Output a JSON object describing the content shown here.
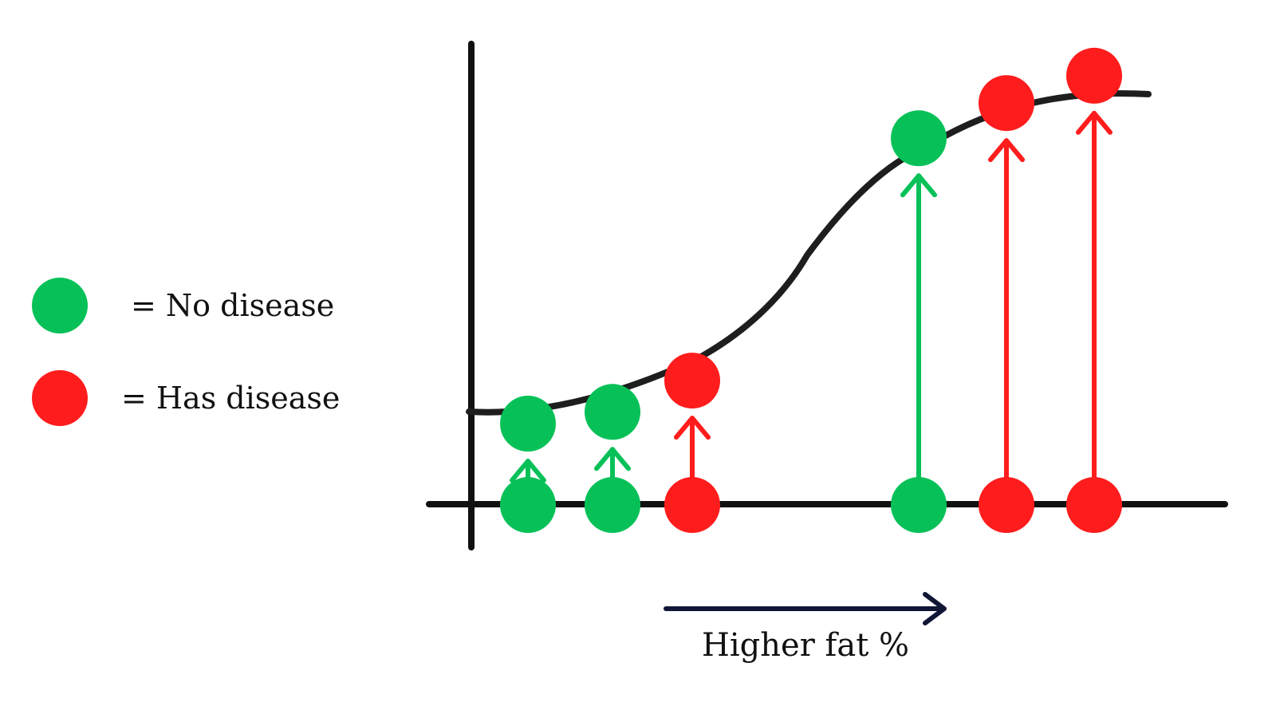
{
  "legend": {
    "no_disease": {
      "label": "= No disease",
      "color": "#07c158"
    },
    "has_disease": {
      "label": "= Has disease",
      "color": "#ff1c1c"
    }
  },
  "x_axis_caption": "Higher fat %",
  "colors": {
    "axis": "#111111",
    "curve": "#1e1e1e",
    "direction_arrow": "#101634"
  },
  "points": [
    {
      "status": "no_disease",
      "probability": 0.1
    },
    {
      "status": "no_disease",
      "probability": 0.13
    },
    {
      "status": "has_disease",
      "probability": 0.21
    },
    {
      "status": "no_disease",
      "probability": 0.83
    },
    {
      "status": "has_disease",
      "probability": 0.92
    },
    {
      "status": "has_disease",
      "probability": 0.99
    }
  ]
}
